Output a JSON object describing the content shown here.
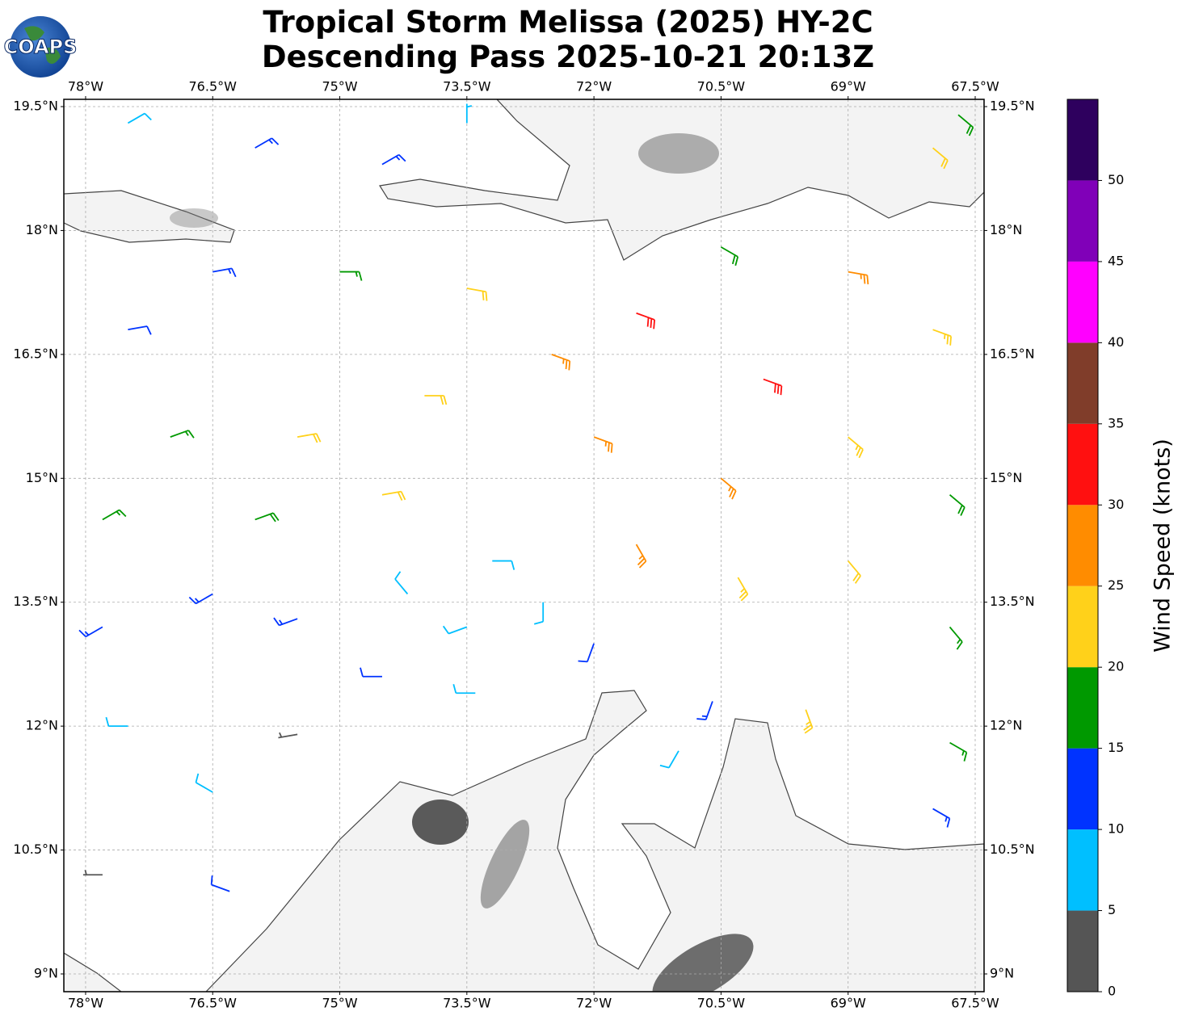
{
  "chart_data": {
    "type": "barbs",
    "title": "Tropical Storm Melissa (2025) HY-2C",
    "subtitle": "Descending Pass 2025-10-21 20:13Z",
    "logo": "COAPS",
    "xlim": [
      -78.257,
      -67.395
    ],
    "ylim": [
      8.785,
      19.588
    ],
    "xticks": [
      {
        "value": -78,
        "label": "78°W"
      },
      {
        "value": -76.5,
        "label": "76.5°W"
      },
      {
        "value": -75,
        "label": "75°W"
      },
      {
        "value": -73.5,
        "label": "73.5°W"
      },
      {
        "value": -72,
        "label": "72°W"
      },
      {
        "value": -70.5,
        "label": "70.5°W"
      },
      {
        "value": -69,
        "label": "69°W"
      },
      {
        "value": -67.5,
        "label": "67.5°W"
      }
    ],
    "yticks": [
      {
        "value": 9,
        "label": "9°N"
      },
      {
        "value": 10.5,
        "label": "10.5°N"
      },
      {
        "value": 12,
        "label": "12°N"
      },
      {
        "value": 13.5,
        "label": "13.5°N"
      },
      {
        "value": 15,
        "label": "15°N"
      },
      {
        "value": 16.5,
        "label": "16.5°N"
      },
      {
        "value": 18,
        "label": "18°N"
      },
      {
        "value": 19.5,
        "label": "19.5°N"
      }
    ],
    "grid": true,
    "barbs": {
      "lon": [
        -71.5,
        -70.0,
        -72.5,
        -69.0,
        -68.0,
        -70.5,
        -73.5,
        -75.0,
        -76.5,
        -77.5,
        -74.0,
        -72.0,
        -70.5,
        -69.0,
        -67.8,
        -75.5,
        -77.0,
        -77.8,
        -76.0,
        -74.5,
        -71.5,
        -70.3,
        -69.0,
        -67.8,
        -73.2,
        -72.6,
        -73.5,
        -74.2,
        -72.0,
        -74.5,
        -73.4,
        -75.5,
        -76.5,
        -77.8,
        -77.5,
        -76.5,
        -77.8,
        -76.3,
        -75.5,
        -71.0,
        -70.6,
        -68.0,
        -67.8,
        -69.5,
        -76.0,
        -77.5,
        -74.5,
        -73.5,
        -68.0,
        -67.7
      ],
      "lat": [
        17.0,
        16.2,
        16.5,
        17.5,
        16.8,
        17.8,
        17.3,
        17.5,
        17.5,
        16.8,
        16.0,
        15.5,
        15.0,
        15.5,
        14.8,
        15.5,
        15.5,
        14.5,
        14.5,
        14.8,
        14.2,
        13.8,
        14.0,
        13.2,
        14.0,
        13.5,
        13.2,
        13.6,
        13.0,
        12.6,
        12.4,
        13.3,
        13.6,
        13.2,
        12.0,
        11.2,
        10.2,
        10.0,
        11.9,
        11.7,
        12.3,
        11.0,
        11.8,
        12.2,
        19.0,
        19.3,
        18.8,
        19.3,
        19.0,
        19.4
      ],
      "speed": [
        32,
        31,
        27,
        26,
        24,
        18,
        22,
        17,
        13,
        12,
        22,
        26,
        27,
        24,
        18,
        21,
        17,
        17,
        18,
        20,
        27,
        24,
        20,
        17,
        9,
        8,
        8,
        9,
        12,
        10,
        9,
        13,
        14,
        13,
        8,
        8,
        4,
        11,
        4,
        8,
        13,
        13,
        17,
        23,
        13,
        8,
        13,
        7,
        22,
        18
      ],
      "direction": [
        110,
        110,
        110,
        100,
        110,
        120,
        100,
        90,
        80,
        80,
        90,
        110,
        130,
        130,
        130,
        80,
        70,
        60,
        70,
        80,
        150,
        150,
        140,
        140,
        90,
        180,
        250,
        320,
        200,
        270,
        270,
        250,
        240,
        240,
        270,
        300,
        270,
        290,
        260,
        210,
        200,
        120,
        120,
        160,
        60,
        60,
        60,
        0,
        130,
        130
      ]
    },
    "colorbar": {
      "label": "Wind Speed (knots)",
      "lim": [
        0,
        55
      ],
      "ticks": [
        0,
        5,
        10,
        15,
        20,
        25,
        30,
        35,
        40,
        45,
        50
      ],
      "colors": [
        "#555555",
        "#00bfff",
        "#0033ff",
        "#009900",
        "#ffd11a",
        "#ff8c00",
        "#ff1010",
        "#803d2a",
        "#ff00ff",
        "#8000b8",
        "#2e005e"
      ]
    }
  }
}
